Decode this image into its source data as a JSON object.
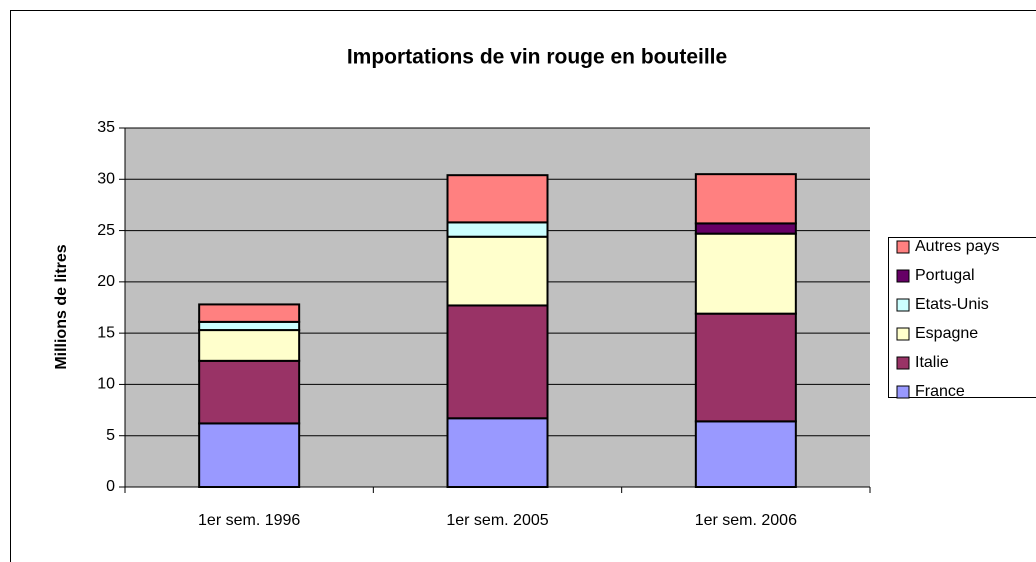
{
  "chart_data": {
    "type": "stacked_bar",
    "title": "Importations de vin rouge en bouteille",
    "y_label": "Millions de litres",
    "categories": [
      "1er sem. 1996",
      "1er sem. 2005",
      "1er sem. 2006"
    ],
    "series": [
      {
        "name": "France",
        "color": "#9999ff",
        "values": [
          6.2,
          6.7,
          6.4
        ]
      },
      {
        "name": "Italie",
        "color": "#993366",
        "values": [
          6.1,
          11.0,
          10.5
        ]
      },
      {
        "name": "Espagne",
        "color": "#ffffcc",
        "values": [
          3.0,
          6.7,
          7.8
        ]
      },
      {
        "name": "Etats-Unis",
        "color": "#ccffff",
        "values": [
          0.8,
          1.4,
          0
        ]
      },
      {
        "name": "Portugal",
        "color": "#660066",
        "values": [
          0,
          0,
          1.0
        ]
      },
      {
        "name": "Autres pays",
        "color": "#ff8080",
        "values": [
          1.7,
          4.6,
          4.8
        ]
      }
    ],
    "ylim": [
      0,
      35
    ],
    "yticks": [
      0,
      5,
      10,
      15,
      20,
      25,
      30,
      35
    ],
    "grid": true,
    "legend": "right"
  }
}
